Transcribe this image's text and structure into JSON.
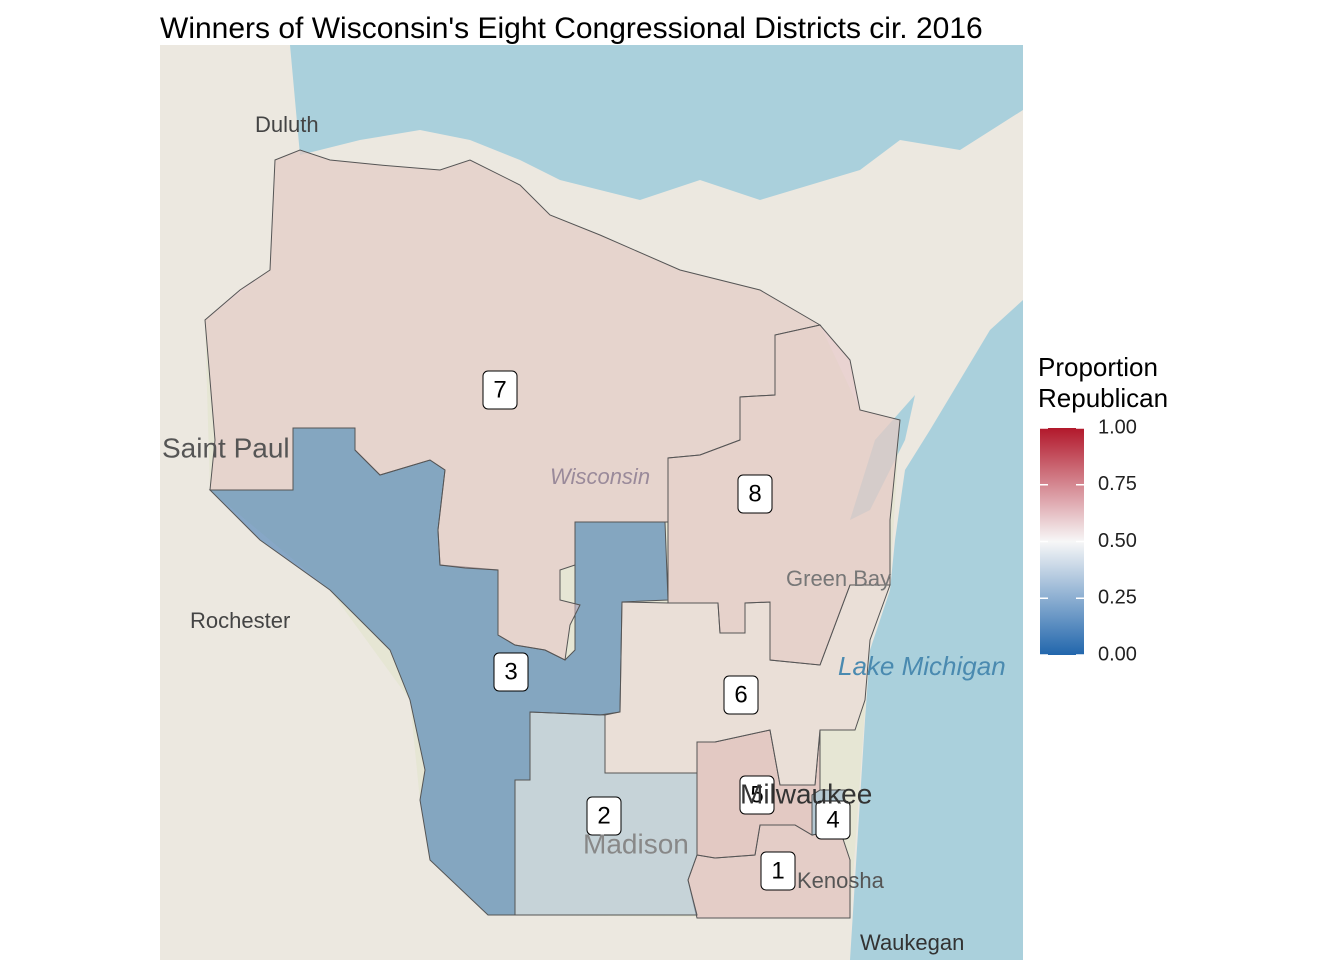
{
  "chart_data": {
    "type": "choropleth",
    "title": "Winners of Wisconsin's Eight Congressional Districts cir. 2016",
    "legend_title": "Proportion Republican",
    "colors": [
      "#2166ac",
      "#f7f7f7",
      "#b2182b"
    ],
    "region_opacity": 0.5,
    "scale_lim": [
      0,
      1
    ],
    "scale_ticks": [
      {
        "value": 0,
        "label": "0.00"
      },
      {
        "value": 0.25,
        "label": "0.25"
      },
      {
        "value": 0.5,
        "label": "0.50"
      },
      {
        "value": 0.75,
        "label": "0.75"
      },
      {
        "value": 1,
        "label": "1.00"
      }
    ],
    "regions": [
      {
        "name": "1",
        "value": 0.65
      },
      {
        "name": "2",
        "value": 0.31
      },
      {
        "name": "3",
        "value": 0.0
      },
      {
        "name": "4",
        "value": 0.23
      },
      {
        "name": "5",
        "value": 0.67
      },
      {
        "name": "6",
        "value": 0.57
      },
      {
        "name": "7",
        "value": 0.62
      },
      {
        "name": "8",
        "value": 0.63
      }
    ],
    "basemap_labels": [
      "Duluth",
      "Saint Paul",
      "Rochester",
      "Wisconsin",
      "Green Bay",
      "Madison",
      "Milwaukee",
      "Kenosha",
      "Waukegan",
      "Lake Michigan"
    ]
  }
}
